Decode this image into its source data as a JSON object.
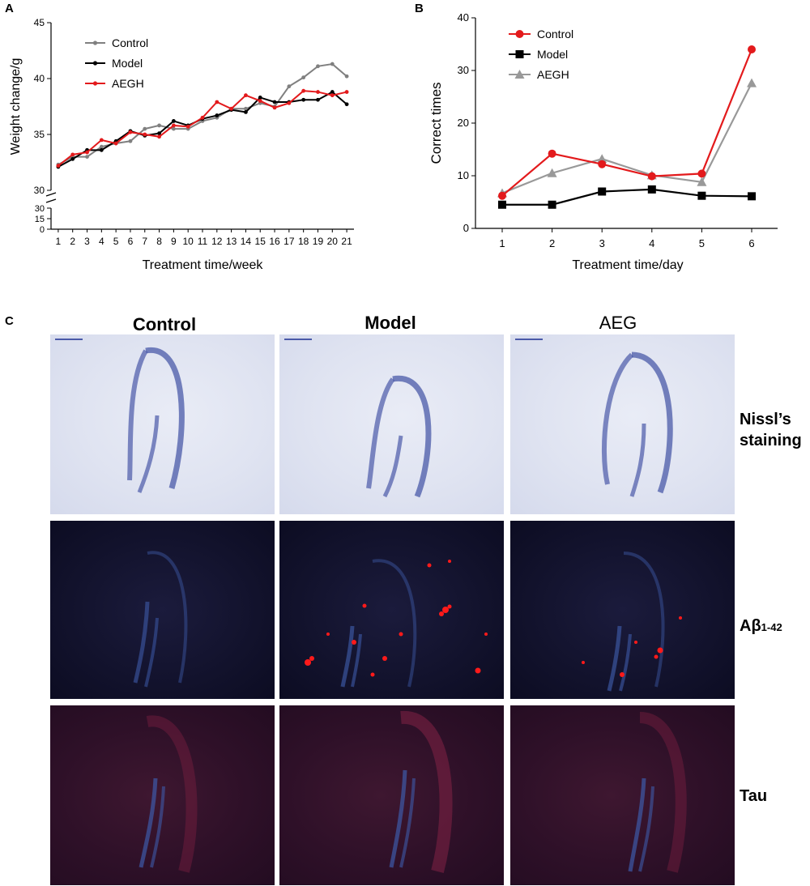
{
  "panels": {
    "a": {
      "letter": "A"
    },
    "b": {
      "letter": "B"
    },
    "c": {
      "letter": "C"
    }
  },
  "chart_data": [
    {
      "id": "A",
      "type": "line",
      "title": "",
      "xlabel": "Treatment time/week",
      "ylabel": "Weight change/g",
      "x": [
        1,
        2,
        3,
        4,
        5,
        6,
        7,
        8,
        9,
        10,
        11,
        12,
        13,
        14,
        15,
        16,
        17,
        18,
        19,
        20,
        21
      ],
      "ylim": [
        30,
        45
      ],
      "yticks": [
        30,
        35,
        40,
        45
      ],
      "broken_axis_ticks": [
        0,
        15,
        30
      ],
      "legend_position": "top-left",
      "grid": false,
      "series": [
        {
          "name": "Control",
          "color": "#808080",
          "values": [
            32.3,
            33.0,
            33.0,
            33.9,
            34.2,
            34.4,
            35.5,
            35.8,
            35.5,
            35.5,
            36.2,
            36.5,
            37.3,
            37.3,
            37.8,
            37.5,
            39.3,
            40.1,
            41.1,
            41.3,
            40.2
          ]
        },
        {
          "name": "Model",
          "color": "#000000",
          "values": [
            32.1,
            32.8,
            33.6,
            33.6,
            34.4,
            35.3,
            34.9,
            35.1,
            36.2,
            35.8,
            36.4,
            36.7,
            37.2,
            37.0,
            38.3,
            37.9,
            37.9,
            38.1,
            38.1,
            38.8,
            37.7
          ]
        },
        {
          "name": "AEGH",
          "color": "#e31a1c",
          "values": [
            32.2,
            33.2,
            33.4,
            34.5,
            34.2,
            35.2,
            35.0,
            34.8,
            35.8,
            35.7,
            36.5,
            37.9,
            37.3,
            38.5,
            38.0,
            37.4,
            37.8,
            38.9,
            38.8,
            38.5,
            38.8
          ]
        }
      ]
    },
    {
      "id": "B",
      "type": "line",
      "title": "",
      "xlabel": "Treatment time/day",
      "ylabel": "Correct times",
      "x": [
        1,
        2,
        3,
        4,
        5,
        6
      ],
      "ylim": [
        0,
        40
      ],
      "yticks": [
        0,
        10,
        20,
        30,
        40
      ],
      "legend_position": "top-left",
      "grid": false,
      "series": [
        {
          "name": "Control",
          "color": "#e31a1c",
          "marker": "circle",
          "values": [
            6.2,
            14.2,
            12.2,
            9.9,
            10.4,
            34.0
          ]
        },
        {
          "name": "Model",
          "color": "#000000",
          "marker": "square",
          "values": [
            4.5,
            4.5,
            7.0,
            7.4,
            6.2,
            6.1
          ]
        },
        {
          "name": "AEGH",
          "color": "#999999",
          "marker": "triangle",
          "values": [
            6.7,
            10.5,
            13.2,
            10.1,
            8.8,
            27.6
          ]
        }
      ]
    }
  ],
  "figure_c": {
    "columns": [
      "Control",
      "Model",
      "AEG"
    ],
    "rows": [
      {
        "label_line1": "Nissl’s",
        "label_line2": "staining"
      },
      {
        "label_main": "Aβ",
        "label_sub": "1-42"
      },
      {
        "label_main": "Tau"
      }
    ],
    "colors": {
      "nissl_stain": "#4a59a8",
      "dapi_blue": "#3d5aa8",
      "abeta_red": "#ff1a1a",
      "tau_red": "#6a1f3a"
    }
  }
}
